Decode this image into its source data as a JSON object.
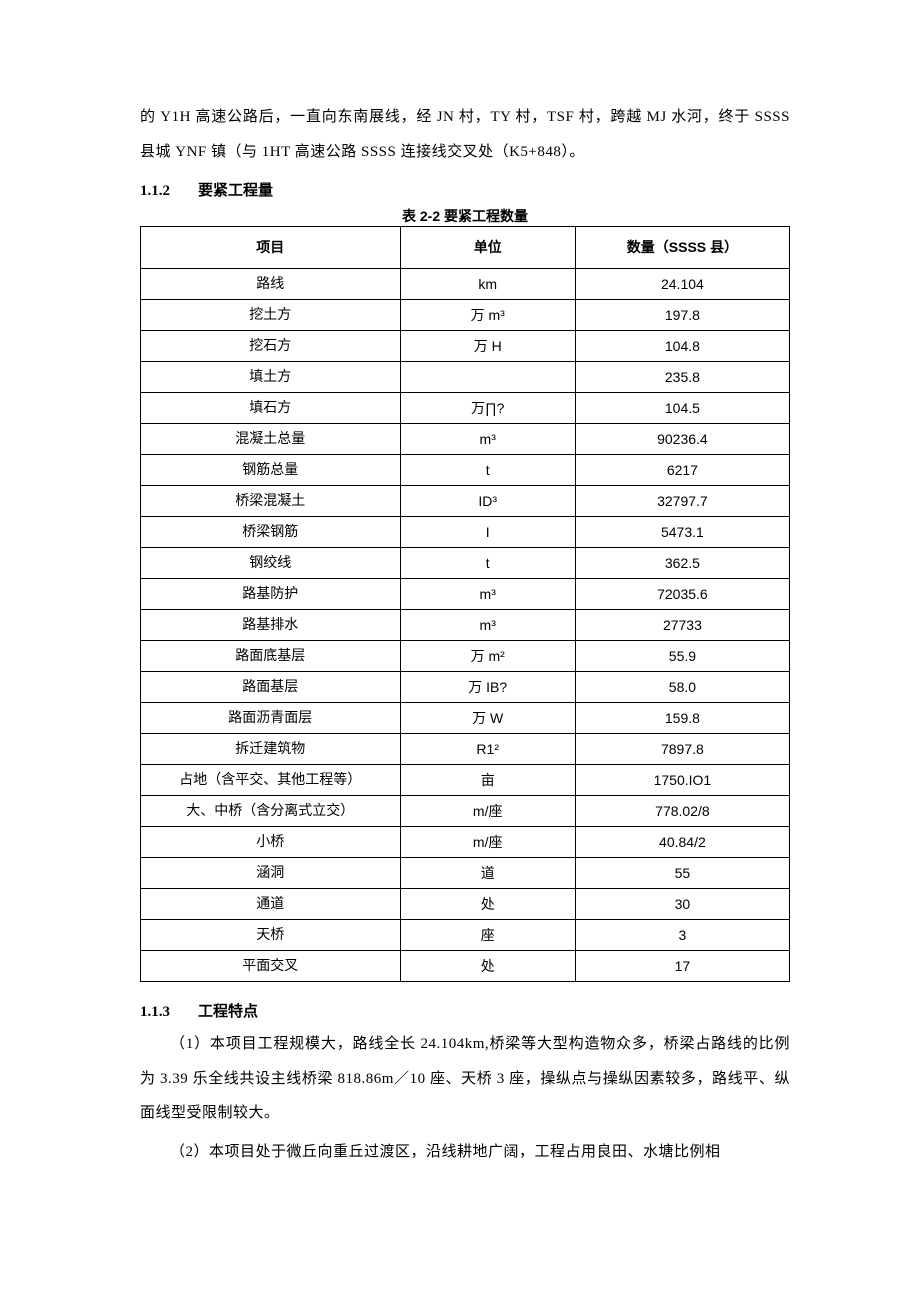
{
  "intro": "的 Y1H 高速公路后，一直向东南展线，经 JN 村，TY 村，TSF 村，跨越 MJ 水河，终于 SSSS 县城 YNF 镇（与 1HT 高速公路 SSSS 连接线交叉处（K5+848）。",
  "section_112": {
    "num": "1.1.2",
    "title": "要紧工程量"
  },
  "table_caption": {
    "num": "表 2-2 ",
    "txt": "要紧工程数量"
  },
  "table_header": {
    "c1": "项目",
    "c2": "单位",
    "c3": "数量（SSSS 县）"
  },
  "rows": [
    {
      "item": "路线",
      "unit": "km",
      "qty": "24.104"
    },
    {
      "item": "挖土方",
      "unit": "万 m³",
      "qty": "197.8"
    },
    {
      "item": "挖石方",
      "unit": "万 H",
      "qty": "104.8"
    },
    {
      "item": "填土方",
      "unit": "",
      "qty": "235.8"
    },
    {
      "item": "填石方",
      "unit": "万∏?",
      "qty": "104.5"
    },
    {
      "item": "混凝土总量",
      "unit": "m³",
      "qty": "90236.4"
    },
    {
      "item": "钢筋总量",
      "unit": "t",
      "qty": "6217"
    },
    {
      "item": "桥梁混凝土",
      "unit": "ID³",
      "qty": "32797.7"
    },
    {
      "item": "桥梁钢筋",
      "unit": "I",
      "qty": "5473.1"
    },
    {
      "item": "钢绞线",
      "unit": "t",
      "qty": "362.5"
    },
    {
      "item": "路基防护",
      "unit": "m³",
      "qty": "72035.6"
    },
    {
      "item": "路基排水",
      "unit": "m³",
      "qty": "27733"
    },
    {
      "item": "路面底基层",
      "unit": "万 m²",
      "qty": "55.9"
    },
    {
      "item": "路面基层",
      "unit": "万 IB?",
      "qty": "58.0"
    },
    {
      "item": "路面沥青面层",
      "unit": "万 W",
      "qty": "159.8"
    },
    {
      "item": "拆迁建筑物",
      "unit": "R1²",
      "qty": "7897.8"
    },
    {
      "item": "占地（含平交、其他工程等）",
      "unit": "亩",
      "qty": "1750.IO1"
    },
    {
      "item": "大、中桥（含分离式立交）",
      "unit": "m/座",
      "qty": "778.02/8"
    },
    {
      "item": "小桥",
      "unit": "m/座",
      "qty": "40.84/2"
    },
    {
      "item": "涵洞",
      "unit": "道",
      "qty": "55"
    },
    {
      "item": "通道",
      "unit": "处",
      "qty": "30"
    },
    {
      "item": "天桥",
      "unit": "座",
      "qty": "3"
    },
    {
      "item": "平面交叉",
      "unit": "处",
      "qty": "17"
    }
  ],
  "section_113": {
    "num": "1.1.3",
    "title": "工程特点"
  },
  "para1": "（1）本项目工程规模大，路线全长 24.104km,桥梁等大型构造物众多，桥梁占路线的比例为 3.39 乐全线共设主线桥梁 818.86m／10 座、天桥 3 座，操纵点与操纵因素较多，路线平、纵面线型受限制较大。",
  "para2": "（2）本项目处于微丘向重丘过渡区，沿线耕地广阔，工程占用良田、水塘比例相"
}
